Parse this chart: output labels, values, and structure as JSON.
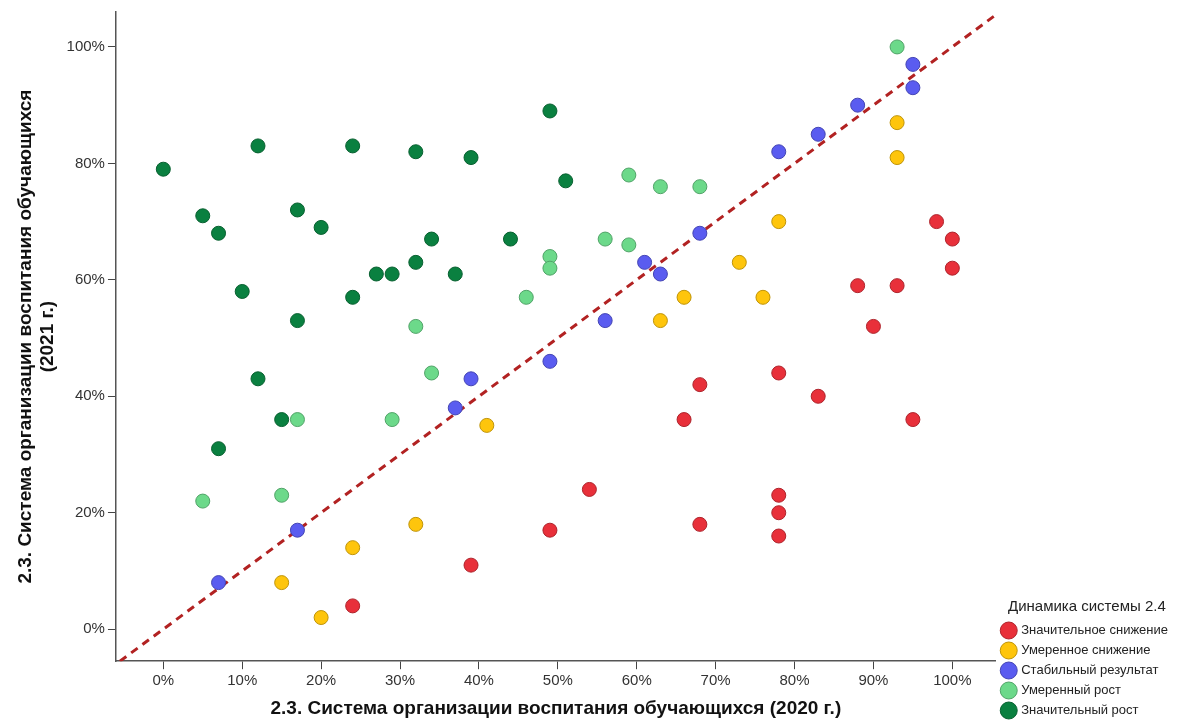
{
  "chart_data": {
    "type": "scatter",
    "xlabel": "2.3. Система организации воспитания обучающихся (2020 г.)",
    "ylabel": "2.3. Система организации воспитания обучающихся (2021 г.)",
    "legend_title": "Динамика системы 2.4",
    "legend": "right",
    "grid": false,
    "marker": "circle",
    "xlim": [
      -6,
      105.5
    ],
    "ylim": [
      -5.5,
      106
    ],
    "xticks": [
      {
        "value": 0,
        "label": "0%"
      },
      {
        "value": 10,
        "label": "10%"
      },
      {
        "value": 20,
        "label": "20%"
      },
      {
        "value": 30,
        "label": "30%"
      },
      {
        "value": 40,
        "label": "40%"
      },
      {
        "value": 50,
        "label": "50%"
      },
      {
        "value": 60,
        "label": "60%"
      },
      {
        "value": 70,
        "label": "70%"
      },
      {
        "value": 80,
        "label": "80%"
      },
      {
        "value": 90,
        "label": "90%"
      },
      {
        "value": 100,
        "label": "100%"
      }
    ],
    "yticks": [
      {
        "value": 0,
        "label": "0%"
      },
      {
        "value": 20,
        "label": "20%"
      },
      {
        "value": 40,
        "label": "40%"
      },
      {
        "value": 60,
        "label": "60%"
      },
      {
        "value": 80,
        "label": "80%"
      },
      {
        "value": 100,
        "label": "100%"
      }
    ],
    "series": [
      {
        "name": "Значительное снижение",
        "color": "#e8303a",
        "x": [
          24,
          39,
          49,
          54,
          68,
          66,
          68,
          78,
          78,
          78,
          78,
          83,
          88,
          90,
          93,
          95,
          98,
          100,
          100
        ],
        "values": [
          4,
          11,
          17,
          24,
          18,
          36,
          42,
          44,
          23,
          20,
          16,
          40,
          59,
          52,
          59,
          36,
          70,
          67,
          62
        ]
      },
      {
        "name": "Умеренное снижение",
        "color": "#fec50c",
        "x": [
          15,
          20,
          24,
          32,
          41,
          63,
          66,
          73,
          76,
          78,
          93,
          93
        ],
        "values": [
          8,
          2,
          14,
          18,
          35,
          53,
          57,
          63,
          57,
          70,
          87,
          81
        ]
      },
      {
        "name": "Стабильный результат",
        "color": "#5a5cf0",
        "x": [
          7,
          17,
          37,
          39,
          49,
          56,
          61,
          63,
          68,
          78,
          83,
          88,
          95,
          95
        ],
        "values": [
          8,
          17,
          38,
          43,
          46,
          53,
          63,
          61,
          68,
          82,
          85,
          90,
          97,
          93
        ]
      },
      {
        "name": "Умеренный рост",
        "color": "#6cd98a",
        "x": [
          5,
          15,
          17,
          29,
          32,
          34,
          46,
          49,
          49,
          56,
          59,
          59,
          63,
          68,
          93
        ],
        "values": [
          22,
          23,
          36,
          36,
          52,
          44,
          57,
          64,
          62,
          67,
          66,
          78,
          76,
          76,
          100
        ]
      },
      {
        "name": "Значительный рост",
        "color": "#0a8040",
        "x": [
          0,
          5,
          7,
          10,
          12,
          12,
          7,
          15,
          17,
          17,
          20,
          24,
          24,
          27,
          29,
          32,
          32,
          34,
          37,
          39,
          44,
          49,
          51
        ],
        "values": [
          79,
          71,
          68,
          58,
          83,
          43,
          31,
          36,
          72,
          53,
          69,
          83,
          57,
          61,
          61,
          82,
          63,
          67,
          61,
          81,
          67,
          89,
          77
        ]
      },
      {
        "type": "line",
        "color": "#b22222",
        "line_style": "dashed",
        "marker": "none",
        "x": [
          -5.5,
          105.5
        ],
        "values": [
          -5.5,
          105.5
        ]
      }
    ]
  }
}
